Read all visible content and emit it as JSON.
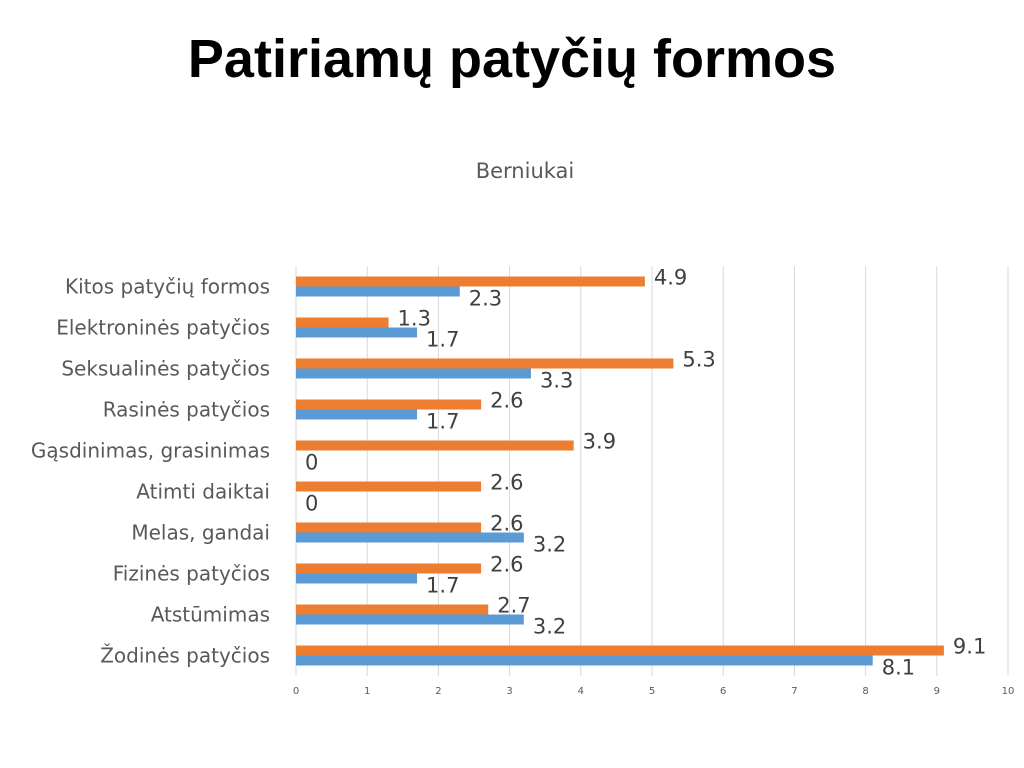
{
  "slide": {
    "title": "Patiriamų patyčių formos"
  },
  "chart_data": {
    "type": "bar",
    "orientation": "horizontal",
    "title": "Berniukai",
    "categories": [
      "Žodinės patyčios",
      "Atstūmimas",
      "Fizinės patyčios",
      "Melas, gandai",
      "Atimti daiktai",
      "Gąsdinimas, grasinimas",
      "Rasinės patyčios",
      "Seksualinės patyčios",
      "Elektroninės patyčios",
      "Kitos patyčių formos"
    ],
    "series": [
      {
        "values": [
          8.1,
          3.2,
          1.7,
          3.2,
          0,
          0,
          1.7,
          3.3,
          1.7,
          2.3
        ],
        "color": "#5B9BD5"
      },
      {
        "values": [
          9.1,
          2.7,
          2.6,
          2.6,
          2.6,
          3.9,
          2.6,
          5.3,
          1.3,
          4.9
        ],
        "color": "#ED7D31"
      }
    ],
    "xlim": [
      0,
      10
    ],
    "xticks": [
      0,
      1,
      2,
      3,
      4,
      5,
      6,
      7,
      8,
      9,
      10
    ],
    "grid": true,
    "data_labels": true
  }
}
